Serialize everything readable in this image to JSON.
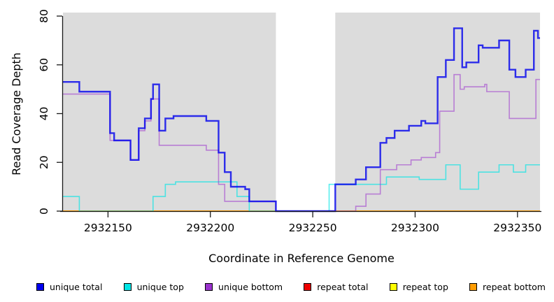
{
  "chart_data": {
    "type": "line",
    "subtype": "step-coverage-plot",
    "title": "",
    "xlabel": "Coordinate in Reference Genome",
    "ylabel": "Read Coverage Depth",
    "xlim": [
      2932128,
      2932361
    ],
    "ylim": [
      0,
      80
    ],
    "xticks": [
      2932150,
      2932200,
      2932250,
      2932300,
      2932350
    ],
    "yticks": [
      0,
      20,
      40,
      60,
      80
    ],
    "grid": false,
    "legend_position": "bottom",
    "plot_background": "#dcdcdc",
    "axis_color": "#1a1a1a",
    "masked_region": {
      "start": 2932232,
      "end": 2932261,
      "color": "#ffffff"
    },
    "draw_order": [
      3,
      4,
      5,
      1,
      2,
      0
    ],
    "series": [
      {
        "name": "unique total",
        "color": "#0000ee",
        "opacity": 0.8,
        "width": 2.4,
        "points": [
          [
            2932128,
            53
          ],
          [
            2932136,
            49
          ],
          [
            2932151,
            32
          ],
          [
            2932153,
            29
          ],
          [
            2932161,
            21
          ],
          [
            2932165,
            34
          ],
          [
            2932168,
            38
          ],
          [
            2932171,
            46
          ],
          [
            2932172,
            52
          ],
          [
            2932175,
            33
          ],
          [
            2932178,
            38
          ],
          [
            2932182,
            39
          ],
          [
            2932198,
            37
          ],
          [
            2932204,
            24
          ],
          [
            2932207,
            16
          ],
          [
            2932210,
            10
          ],
          [
            2932217,
            9
          ],
          [
            2932219,
            4
          ],
          [
            2932232,
            0
          ],
          [
            2932261,
            11
          ],
          [
            2932271,
            13
          ],
          [
            2932276,
            18
          ],
          [
            2932283,
            28
          ],
          [
            2932286,
            30
          ],
          [
            2932290,
            33
          ],
          [
            2932297,
            35
          ],
          [
            2932303,
            37
          ],
          [
            2932305,
            36
          ],
          [
            2932311,
            55
          ],
          [
            2932315,
            62
          ],
          [
            2932319,
            75
          ],
          [
            2932323,
            59
          ],
          [
            2932325,
            61
          ],
          [
            2932331,
            68
          ],
          [
            2932333,
            67
          ],
          [
            2932341,
            70
          ],
          [
            2932346,
            58
          ],
          [
            2932349,
            55
          ],
          [
            2932354,
            58
          ],
          [
            2932358,
            74
          ],
          [
            2932360,
            71
          ]
        ]
      },
      {
        "name": "unique top",
        "color": "#00e5e5",
        "opacity": 0.65,
        "width": 1.6,
        "points": [
          [
            2932128,
            6
          ],
          [
            2932136,
            0
          ],
          [
            2932172,
            6
          ],
          [
            2932178,
            11
          ],
          [
            2932183,
            12
          ],
          [
            2932213,
            6
          ],
          [
            2932219,
            0
          ],
          [
            2932258,
            11
          ],
          [
            2932286,
            14
          ],
          [
            2932302,
            13
          ],
          [
            2932315,
            19
          ],
          [
            2932322,
            9
          ],
          [
            2932331,
            16
          ],
          [
            2932341,
            19
          ],
          [
            2932348,
            16
          ],
          [
            2932354,
            19
          ]
        ]
      },
      {
        "name": "unique bottom",
        "color": "#9a32cd",
        "opacity": 0.55,
        "width": 1.6,
        "points": [
          [
            2932128,
            48
          ],
          [
            2932151,
            29
          ],
          [
            2932161,
            21
          ],
          [
            2932165,
            33
          ],
          [
            2932168,
            37
          ],
          [
            2932171,
            46
          ],
          [
            2932175,
            27
          ],
          [
            2932198,
            25
          ],
          [
            2932204,
            11
          ],
          [
            2932207,
            4
          ],
          [
            2932232,
            0
          ],
          [
            2932271,
            2
          ],
          [
            2932276,
            7
          ],
          [
            2932283,
            17
          ],
          [
            2932291,
            19
          ],
          [
            2932298,
            21
          ],
          [
            2932303,
            22
          ],
          [
            2932310,
            24
          ],
          [
            2932312,
            41
          ],
          [
            2932319,
            56
          ],
          [
            2932322,
            50
          ],
          [
            2932324,
            51
          ],
          [
            2932334,
            52
          ],
          [
            2932335,
            49
          ],
          [
            2932346,
            38
          ],
          [
            2932359,
            54
          ]
        ]
      },
      {
        "name": "repeat total",
        "color": "#ee0000",
        "opacity": 1,
        "width": 1.6,
        "points": [
          [
            2932128,
            0
          ]
        ]
      },
      {
        "name": "repeat top",
        "color": "#ffff00",
        "opacity": 1,
        "width": 1.6,
        "points": [
          [
            2932128,
            0
          ]
        ]
      },
      {
        "name": "repeat bottom",
        "color": "#ff9d00",
        "opacity": 1,
        "width": 2.0,
        "points": [
          [
            2932128,
            0
          ]
        ]
      }
    ]
  }
}
